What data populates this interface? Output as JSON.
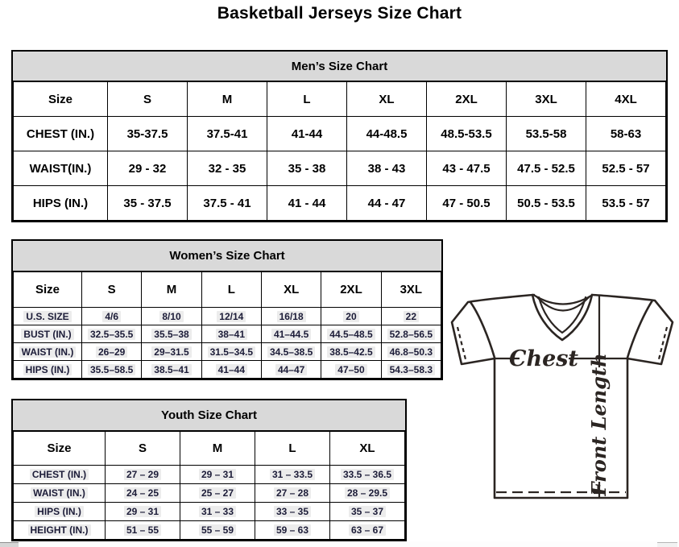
{
  "page_title": "Basketball Jerseys Size Chart",
  "colors": {
    "table_header_bg": "#d9d9d9",
    "table_border": "#000000",
    "dark_table_text": "#1c1c38",
    "diagram_stroke": "#2b2522"
  },
  "men": {
    "title": "Men’s Size Chart",
    "header": [
      "Size",
      "S",
      "M",
      "L",
      "XL",
      "2XL",
      "3XL",
      "4XL"
    ],
    "rows": [
      {
        "label": "CHEST (IN.)",
        "values": [
          "35-37.5",
          "37.5-41",
          "41-44",
          "44-48.5",
          "48.5-53.5",
          "53.5-58",
          "58-63"
        ]
      },
      {
        "label": "WAIST(IN.)",
        "values": [
          "29 - 32",
          "32 - 35",
          "35 - 38",
          "38 - 43",
          "43 - 47.5",
          "47.5 - 52.5",
          "52.5 - 57"
        ]
      },
      {
        "label": "HIPS (IN.)",
        "values": [
          "35 - 37.5",
          "37.5 - 41",
          "41 - 44",
          "44 - 47",
          "47 - 50.5",
          "50.5 - 53.5",
          "53.5 - 57"
        ]
      }
    ]
  },
  "women": {
    "title": "Women’s Size Chart",
    "header": [
      "Size",
      "S",
      "M",
      "L",
      "XL",
      "2XL",
      "3XL"
    ],
    "rows": [
      {
        "label": "U.S. SIZE",
        "values": [
          "4/6",
          "8/10",
          "12/14",
          "16/18",
          "20",
          "22"
        ]
      },
      {
        "label": "BUST (IN.)",
        "values": [
          "32.5–35.5",
          "35.5–38",
          "38–41",
          "41–44.5",
          "44.5–48.5",
          "52.8–56.5"
        ]
      },
      {
        "label": "WAIST (IN.)",
        "values": [
          "26–29",
          "29–31.5",
          "31.5–34.5",
          "34.5–38.5",
          "38.5–42.5",
          "46.8–50.3"
        ]
      },
      {
        "label": "HIPS (IN.)",
        "values": [
          "35.5–58.5",
          "38.5–41",
          "41–44",
          "44–47",
          "47–50",
          "54.3–58.3"
        ]
      }
    ]
  },
  "youth": {
    "title": "Youth Size Chart",
    "header": [
      "Size",
      "S",
      "M",
      "L",
      "XL"
    ],
    "rows": [
      {
        "label": "CHEST (IN.)",
        "values": [
          "27 – 29",
          "29 – 31",
          "31 – 33.5",
          "33.5 – 36.5"
        ]
      },
      {
        "label": "WAIST (IN.)",
        "values": [
          "24 – 25",
          "25 – 27",
          "27 – 28",
          "28 – 29.5"
        ]
      },
      {
        "label": "HIPS (IN.)",
        "values": [
          "29 – 31",
          "31 – 33",
          "33 – 35",
          "35 – 37"
        ]
      },
      {
        "label": "HEIGHT (IN.)",
        "values": [
          "51 – 55",
          "55 – 59",
          "59 – 63",
          "63 – 67"
        ]
      }
    ]
  },
  "diagram": {
    "chest_label": "Chest",
    "front_length_label": "Front Length"
  }
}
